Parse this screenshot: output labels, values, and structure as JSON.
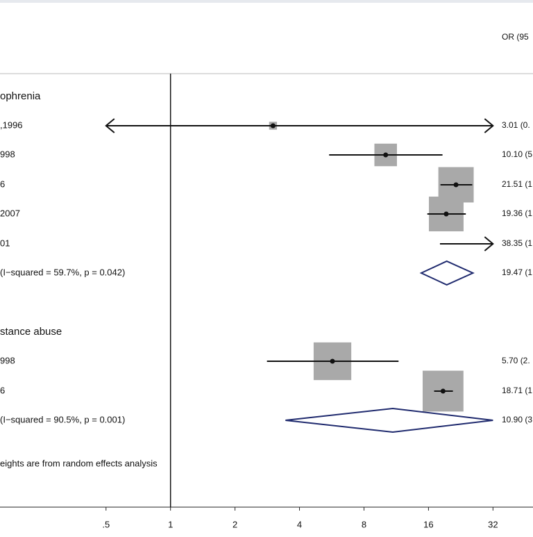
{
  "chart_data": {
    "type": "forest",
    "header": "OR (95",
    "xlog_base": 2,
    "xlim": [
      0.16,
      49.2
    ],
    "xticks": [
      {
        "value": 0.5,
        "label": ".5"
      },
      1,
      2,
      4,
      8,
      16,
      32
    ],
    "box_color": "#a9a9a9",
    "diamond_color": "#1f2a6e",
    "rows": [
      {
        "kind": "heading",
        "label": "ophrenia"
      },
      {
        "kind": "study",
        "label": ",1996",
        "or_text": "3.01 (0.",
        "estimate": 3.01,
        "ci": [
          0.5,
          32
        ],
        "weight": 2,
        "arrows": [
          "left",
          "right"
        ]
      },
      {
        "kind": "study",
        "label": "998",
        "or_text": "10.10 (5",
        "estimate": 10.1,
        "ci": [
          5.5,
          18.6
        ],
        "weight": 16.5
      },
      {
        "kind": "study",
        "label": "6",
        "or_text": "21.51 (1",
        "estimate": 21.51,
        "ci": [
          18.2,
          25.6
        ],
        "weight": 40.5
      },
      {
        "kind": "study",
        "label": "2007",
        "or_text": "19.36 (1",
        "estimate": 19.36,
        "ci": [
          15.8,
          23.9
        ],
        "weight": 39
      },
      {
        "kind": "study",
        "label": "01",
        "or_text": "38.35 (1",
        "estimate": 38.35,
        "ci": [
          18.1,
          32
        ],
        "weight": 2,
        "arrows": [
          "right"
        ]
      },
      {
        "kind": "pooled",
        "label": "(I−squared = 59.7%, p = 0.042)",
        "or_text": "19.47 (1",
        "estimate": 19.47,
        "ci": [
          14.8,
          25.8
        ]
      },
      {
        "kind": "heading",
        "label": "stance abuse"
      },
      {
        "kind": "study",
        "label": "998",
        "or_text": "5.70 (2.",
        "estimate": 5.7,
        "ci": [
          2.82,
          11.6
        ],
        "weight": 46
      },
      {
        "kind": "study",
        "label": "6",
        "or_text": "18.71 (1",
        "estimate": 18.71,
        "ci": [
          17,
          20.8
        ],
        "weight": 54
      },
      {
        "kind": "pooled",
        "label": "(I−squared = 90.5%, p = 0.001)",
        "or_text": "10.90 (3",
        "estimate": 10.9,
        "ci": [
          3.44,
          32
        ]
      },
      {
        "kind": "note",
        "label": "eights are from random effects analysis"
      }
    ]
  }
}
